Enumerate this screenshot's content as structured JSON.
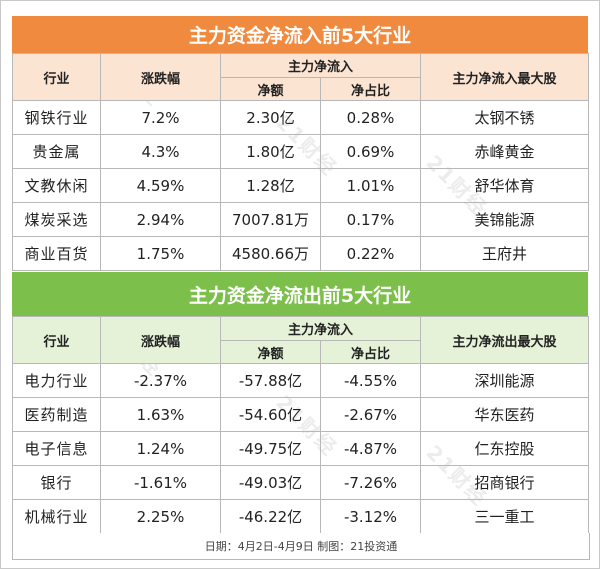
{
  "inflow": {
    "title": "主力资金净流入前5大行业",
    "headers": {
      "industry": "行业",
      "change": "涨跌幅",
      "netflow": "主力净流入",
      "amount": "净额",
      "ratio": "净占比",
      "top_stock": "主力净流入最大股"
    },
    "rows": [
      {
        "industry": "钢铁行业",
        "change": "7.2%",
        "amount": "2.30亿",
        "ratio": "0.28%",
        "stock": "太钢不锈"
      },
      {
        "industry": "贵金属",
        "change": "4.3%",
        "amount": "1.80亿",
        "ratio": "0.69%",
        "stock": "赤峰黄金"
      },
      {
        "industry": "文教休闲",
        "change": "4.59%",
        "amount": "1.28亿",
        "ratio": "1.01%",
        "stock": "舒华体育"
      },
      {
        "industry": "煤炭采选",
        "change": "2.94%",
        "amount": "7007.81万",
        "ratio": "0.17%",
        "stock": "美锦能源"
      },
      {
        "industry": "商业百货",
        "change": "1.75%",
        "amount": "4580.66万",
        "ratio": "0.22%",
        "stock": "王府井"
      }
    ]
  },
  "outflow": {
    "title": "主力资金净流出前5大行业",
    "headers": {
      "industry": "行业",
      "change": "涨跌幅",
      "netflow": "主力净流入",
      "amount": "净额",
      "ratio": "净占比",
      "top_stock": "主力净流出最大股"
    },
    "rows": [
      {
        "industry": "电力行业",
        "change": "-2.37%",
        "amount": "-57.88亿",
        "ratio": "-4.55%",
        "stock": "深圳能源"
      },
      {
        "industry": "医药制造",
        "change": "1.63%",
        "amount": "-54.60亿",
        "ratio": "-2.67%",
        "stock": "华东医药"
      },
      {
        "industry": "电子信息",
        "change": "1.24%",
        "amount": "-49.75亿",
        "ratio": "-4.87%",
        "stock": "仁东控股"
      },
      {
        "industry": "银行",
        "change": "-1.61%",
        "amount": "-49.03亿",
        "ratio": "-7.26%",
        "stock": "招商银行"
      },
      {
        "industry": "机械行业",
        "change": "2.25%",
        "amount": "-46.22亿",
        "ratio": "-3.12%",
        "stock": "三一重工"
      }
    ]
  },
  "footer": "日期：4月2日-4月9日 制图：21投资通",
  "watermark": "21财经",
  "colors": {
    "inflow_banner": "#f08a3e",
    "inflow_header": "#fbe4d2",
    "outflow_banner": "#7cbf4a",
    "outflow_header": "#e6f2d8"
  }
}
